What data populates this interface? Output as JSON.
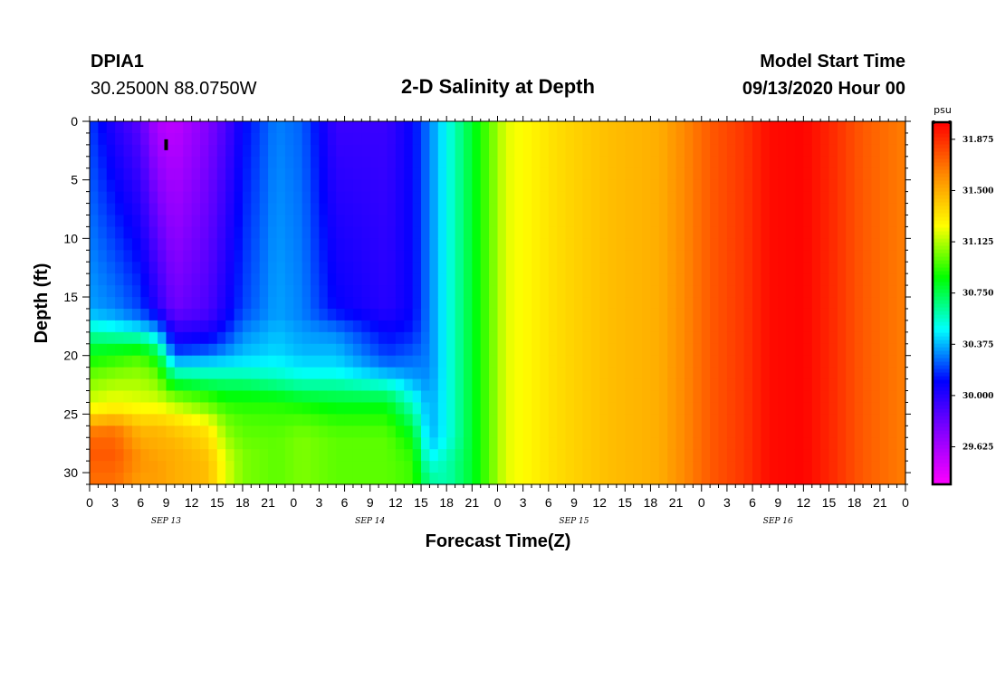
{
  "header": {
    "station_id": "DPIA1",
    "station_coords": "30.2500N 88.0750W",
    "title": "2-D Salinity at Depth",
    "start_label": "Model Start Time",
    "start_value": "09/13/2020 Hour 00"
  },
  "chart_data": {
    "type": "heatmap",
    "title": "2-D Salinity at Depth",
    "xlabel": "Forecast Time(Z)",
    "ylabel": "Depth (ft)",
    "x_unit": "forecast hour",
    "xlim": [
      0,
      96
    ],
    "ylim": [
      0,
      31
    ],
    "y_inverted": true,
    "x_tick_labels": [
      "0",
      "3",
      "6",
      "9",
      "12",
      "15",
      "18",
      "21",
      "0",
      "3",
      "6",
      "9",
      "12",
      "15",
      "18",
      "21",
      "0",
      "3",
      "6",
      "9",
      "12",
      "15",
      "18",
      "21",
      "0",
      "3",
      "6",
      "9",
      "12",
      "15",
      "18",
      "21",
      "0"
    ],
    "y_ticks": [
      0,
      5,
      10,
      15,
      20,
      25,
      30
    ],
    "day_labels": [
      "SEP 13",
      "SEP 14",
      "SEP 15",
      "SEP 16"
    ],
    "colorbar": {
      "unit": "psu",
      "min": 29.35,
      "max": 32.0,
      "tick_values": [
        29.625,
        30.0,
        30.375,
        30.75,
        31.125,
        31.5,
        31.875
      ],
      "tick_labels": [
        "29.625",
        "30.000",
        "30.375",
        "30.750",
        "31.125",
        "31.500",
        "31.875"
      ],
      "colors": [
        "#ff00ff",
        "#8800ff",
        "#0000ff",
        "#00ffff",
        "#00ff00",
        "#ffff00",
        "#ff8800",
        "#ff0000"
      ]
    },
    "depths": [
      0,
      16,
      17,
      18,
      19,
      20,
      21,
      22,
      23,
      24,
      25,
      26,
      27,
      28,
      29,
      30,
      31
    ],
    "columns": [
      {
        "hour": 0,
        "values": [
          30.2,
          30.35,
          30.45,
          30.6,
          30.75,
          30.85,
          30.95,
          31.05,
          31.1,
          31.2,
          31.3,
          31.6,
          31.7,
          31.75,
          31.75,
          31.7,
          31.7
        ]
      },
      {
        "hour": 3,
        "values": [
          30.0,
          30.3,
          30.4,
          30.55,
          30.75,
          30.9,
          31.0,
          31.1,
          31.15,
          31.25,
          31.35,
          31.65,
          31.7,
          31.75,
          31.75,
          31.7,
          31.7
        ]
      },
      {
        "hour": 6,
        "values": [
          29.85,
          30.2,
          30.3,
          30.5,
          30.75,
          30.95,
          31.05,
          31.1,
          31.15,
          31.2,
          31.3,
          31.45,
          31.5,
          31.55,
          31.6,
          31.55,
          31.55
        ]
      },
      {
        "hour": 8,
        "values": [
          29.6,
          30.0,
          30.2,
          30.35,
          30.6,
          30.8,
          30.95,
          31.05,
          31.1,
          31.2,
          31.3,
          31.45,
          31.5,
          31.5,
          31.55,
          31.55,
          31.55
        ]
      },
      {
        "hour": 10,
        "values": [
          29.55,
          29.8,
          29.9,
          30.0,
          30.1,
          30.25,
          30.5,
          30.7,
          30.95,
          31.1,
          31.25,
          31.4,
          31.45,
          31.5,
          31.5,
          31.5,
          31.5
        ]
      },
      {
        "hour": 14,
        "values": [
          29.75,
          29.9,
          29.95,
          30.05,
          30.15,
          30.3,
          30.5,
          30.65,
          30.85,
          31.0,
          31.1,
          31.3,
          31.35,
          31.4,
          31.45,
          31.45,
          31.45
        ]
      },
      {
        "hour": 16,
        "values": [
          29.9,
          30.05,
          30.1,
          30.15,
          30.25,
          30.35,
          30.5,
          30.65,
          30.8,
          30.9,
          31.0,
          31.05,
          31.1,
          31.15,
          31.2,
          31.2,
          31.2
        ]
      },
      {
        "hour": 18,
        "values": [
          30.1,
          30.2,
          30.25,
          30.3,
          30.35,
          30.4,
          30.5,
          30.65,
          30.8,
          30.9,
          30.95,
          31.0,
          31.0,
          31.05,
          31.05,
          31.05,
          31.05
        ]
      },
      {
        "hour": 22,
        "values": [
          30.3,
          30.35,
          30.35,
          30.4,
          30.4,
          30.45,
          30.5,
          30.6,
          30.75,
          30.9,
          30.95,
          30.97,
          31.0,
          31.0,
          31.0,
          31.0,
          31.0
        ]
      },
      {
        "hour": 25,
        "values": [
          30.25,
          30.3,
          30.3,
          30.35,
          30.35,
          30.4,
          30.45,
          30.55,
          30.7,
          30.85,
          30.95,
          31.0,
          31.05,
          31.05,
          31.05,
          31.05,
          31.05
        ]
      },
      {
        "hour": 29,
        "values": [
          29.95,
          30.1,
          30.2,
          30.3,
          30.35,
          30.4,
          30.45,
          30.55,
          30.7,
          30.8,
          30.9,
          30.95,
          31.0,
          31.0,
          31.0,
          31.0,
          31.0
        ]
      },
      {
        "hour": 35,
        "values": [
          29.95,
          30.0,
          30.05,
          30.1,
          30.15,
          30.2,
          30.3,
          30.45,
          30.65,
          30.8,
          30.9,
          30.95,
          31.0,
          31.0,
          31.0,
          31.0,
          31.0
        ]
      },
      {
        "hour": 38,
        "values": [
          30.1,
          30.1,
          30.12,
          30.15,
          30.2,
          30.25,
          30.3,
          30.35,
          30.45,
          30.55,
          30.65,
          30.75,
          30.85,
          30.9,
          30.95,
          30.95,
          30.95
        ]
      },
      {
        "hour": 40,
        "values": [
          30.3,
          30.3,
          30.3,
          30.3,
          30.3,
          30.3,
          30.3,
          30.32,
          30.33,
          30.35,
          30.35,
          30.35,
          30.38,
          30.42,
          30.5,
          30.6,
          30.65
        ]
      },
      {
        "hour": 42,
        "values": [
          30.5,
          30.5,
          30.5,
          30.5,
          30.5,
          30.5,
          30.5,
          30.5,
          30.5,
          30.5,
          30.5,
          30.5,
          30.5,
          30.55,
          30.6,
          30.6,
          30.6
        ]
      },
      {
        "hour": 45,
        "values": [
          30.8,
          30.8,
          30.8,
          30.8,
          30.8,
          30.8,
          30.8,
          30.8,
          30.8,
          30.8,
          30.8,
          30.8,
          30.8,
          30.8,
          30.8,
          30.8,
          30.8
        ]
      },
      {
        "hour": 49,
        "values": [
          31.2,
          31.2,
          31.2,
          31.2,
          31.2,
          31.2,
          31.2,
          31.2,
          31.2,
          31.2,
          31.2,
          31.2,
          31.2,
          31.2,
          31.2,
          31.2,
          31.2
        ]
      },
      {
        "hour": 55,
        "values": [
          31.35,
          31.35,
          31.35,
          31.35,
          31.35,
          31.35,
          31.35,
          31.35,
          31.35,
          31.35,
          31.35,
          31.35,
          31.35,
          31.35,
          31.35,
          31.35,
          31.35
        ]
      },
      {
        "hour": 61,
        "values": [
          31.45,
          31.45,
          31.45,
          31.45,
          31.45,
          31.45,
          31.45,
          31.45,
          31.45,
          31.45,
          31.45,
          31.45,
          31.45,
          31.45,
          31.45,
          31.45,
          31.45
        ]
      },
      {
        "hour": 67,
        "values": [
          31.5,
          31.5,
          31.5,
          31.5,
          31.5,
          31.5,
          31.5,
          31.5,
          31.5,
          31.5,
          31.5,
          31.5,
          31.5,
          31.5,
          31.5,
          31.5,
          31.5
        ]
      },
      {
        "hour": 70,
        "values": [
          31.62,
          31.62,
          31.62,
          31.62,
          31.62,
          31.62,
          31.62,
          31.62,
          31.62,
          31.62,
          31.62,
          31.62,
          31.62,
          31.62,
          31.62,
          31.62,
          31.62
        ]
      },
      {
        "hour": 73,
        "values": [
          31.75,
          31.75,
          31.75,
          31.75,
          31.75,
          31.75,
          31.75,
          31.75,
          31.75,
          31.75,
          31.75,
          31.75,
          31.75,
          31.75,
          31.75,
          31.75,
          31.75
        ]
      },
      {
        "hour": 77,
        "values": [
          31.85,
          31.85,
          31.85,
          31.85,
          31.85,
          31.85,
          31.85,
          31.85,
          31.85,
          31.85,
          31.85,
          31.85,
          31.85,
          31.85,
          31.85,
          31.85,
          31.85
        ]
      },
      {
        "hour": 80,
        "values": [
          31.97,
          31.97,
          31.97,
          31.97,
          31.97,
          31.97,
          31.97,
          31.97,
          31.97,
          31.97,
          31.97,
          31.97,
          31.97,
          31.97,
          31.97,
          31.97,
          31.97
        ]
      },
      {
        "hour": 84,
        "values": [
          31.99,
          31.99,
          31.99,
          31.99,
          31.99,
          31.99,
          31.99,
          31.99,
          31.99,
          31.99,
          31.99,
          31.99,
          31.99,
          31.99,
          31.99,
          31.99,
          31.99
        ]
      },
      {
        "hour": 87,
        "values": [
          31.9,
          31.9,
          31.9,
          31.9,
          31.9,
          31.9,
          31.9,
          31.9,
          31.9,
          31.9,
          31.9,
          31.9,
          31.9,
          31.9,
          31.9,
          31.9,
          31.9
        ]
      },
      {
        "hour": 91,
        "values": [
          31.75,
          31.75,
          31.75,
          31.75,
          31.75,
          31.75,
          31.75,
          31.75,
          31.75,
          31.75,
          31.75,
          31.75,
          31.75,
          31.75,
          31.75,
          31.75,
          31.75
        ]
      },
      {
        "hour": 96,
        "values": [
          31.65,
          31.65,
          31.65,
          31.65,
          31.65,
          31.65,
          31.65,
          31.65,
          31.65,
          31.65,
          31.65,
          31.65,
          31.65,
          31.65,
          31.65,
          31.65,
          31.65
        ]
      }
    ],
    "marker": {
      "hour": 9,
      "depth": 2
    }
  }
}
